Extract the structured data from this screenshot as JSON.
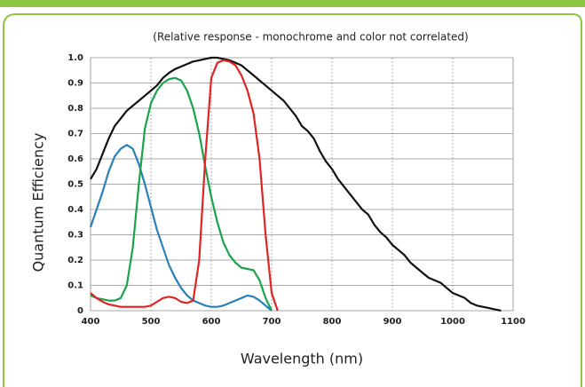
{
  "chart_data": {
    "type": "line",
    "title": "(Relative response - monochrome and color not correlated)",
    "x_label": "Wavelength (nm)",
    "y_label": "Quantum Efficiency",
    "x": [
      400,
      410,
      420,
      430,
      440,
      450,
      460,
      470,
      480,
      490,
      500,
      510,
      520,
      530,
      540,
      550,
      560,
      570,
      580,
      590,
      600,
      610,
      620,
      630,
      640,
      650,
      660,
      670,
      680,
      690,
      700,
      710,
      720,
      730,
      740,
      750,
      760,
      770,
      780,
      790,
      800,
      810,
      820,
      830,
      840,
      850,
      860,
      870,
      880,
      890,
      900,
      910,
      920,
      930,
      940,
      950,
      960,
      970,
      980,
      990,
      1000,
      1010,
      1020,
      1030,
      1040,
      1050,
      1060,
      1070,
      1080
    ],
    "series": [
      {
        "color": "#111111",
        "values": [
          0.52,
          0.56,
          0.62,
          0.68,
          0.73,
          0.76,
          0.79,
          0.81,
          0.83,
          0.85,
          0.87,
          0.89,
          0.92,
          0.94,
          0.955,
          0.965,
          0.975,
          0.985,
          0.99,
          0.995,
          1.0,
          1.0,
          0.995,
          0.99,
          0.98,
          0.97,
          0.95,
          0.93,
          0.91,
          0.89,
          0.87,
          0.85,
          0.83,
          0.8,
          0.77,
          0.73,
          0.71,
          0.68,
          0.63,
          0.59,
          0.56,
          0.52,
          0.49,
          0.46,
          0.43,
          0.4,
          0.38,
          0.34,
          0.31,
          0.29,
          0.26,
          0.24,
          0.22,
          0.19,
          0.17,
          0.15,
          0.13,
          0.12,
          0.11,
          0.09,
          0.07,
          0.06,
          0.05,
          0.03,
          0.02,
          0.015,
          0.01,
          0.005,
          0.0
        ]
      },
      {
        "color": "#2a7fb8",
        "values": [
          0.33,
          0.4,
          0.47,
          0.55,
          0.61,
          0.64,
          0.655,
          0.64,
          0.58,
          0.5,
          0.41,
          0.32,
          0.25,
          0.18,
          0.13,
          0.09,
          0.06,
          0.04,
          0.03,
          0.02,
          0.015,
          0.015,
          0.02,
          0.03,
          0.04,
          0.05,
          0.06,
          0.055,
          0.04,
          0.02,
          0.0,
          null,
          null,
          null,
          null,
          null,
          null,
          null,
          null,
          null,
          null,
          null,
          null,
          null,
          null,
          null,
          null,
          null,
          null,
          null,
          null,
          null,
          null,
          null,
          null,
          null,
          null,
          null,
          null,
          null,
          null,
          null,
          null,
          null,
          null,
          null,
          null,
          null,
          null
        ]
      },
      {
        "color": "#1aa34a",
        "values": [
          0.06,
          0.05,
          0.045,
          0.04,
          0.04,
          0.05,
          0.1,
          0.25,
          0.5,
          0.72,
          0.82,
          0.87,
          0.9,
          0.915,
          0.92,
          0.91,
          0.87,
          0.8,
          0.7,
          0.57,
          0.45,
          0.35,
          0.27,
          0.22,
          0.19,
          0.17,
          0.165,
          0.16,
          0.12,
          0.05,
          0.0,
          null,
          null,
          null,
          null,
          null,
          null,
          null,
          null,
          null,
          null,
          null,
          null,
          null,
          null,
          null,
          null,
          null,
          null,
          null,
          null,
          null,
          null,
          null,
          null,
          null,
          null,
          null,
          null,
          null,
          null,
          null,
          null,
          null,
          null,
          null,
          null,
          null,
          null
        ]
      },
      {
        "color": "#e02424",
        "values": [
          0.07,
          0.05,
          0.035,
          0.025,
          0.02,
          0.015,
          0.015,
          0.015,
          0.015,
          0.015,
          0.02,
          0.035,
          0.05,
          0.055,
          0.05,
          0.035,
          0.03,
          0.04,
          0.2,
          0.6,
          0.92,
          0.98,
          0.99,
          0.985,
          0.97,
          0.93,
          0.87,
          0.78,
          0.6,
          0.3,
          0.07,
          0.0,
          null,
          null,
          null,
          null,
          null,
          null,
          null,
          null,
          null,
          null,
          null,
          null,
          null,
          null,
          null,
          null,
          null,
          null,
          null,
          null,
          null,
          null,
          null,
          null,
          null,
          null,
          null,
          null,
          null,
          null,
          null,
          null,
          null,
          null,
          null,
          null,
          null
        ]
      }
    ],
    "xlim": [
      400,
      1100
    ],
    "xticks": [
      400,
      500,
      600,
      700,
      800,
      900,
      1000,
      1100
    ],
    "ylim": [
      0,
      1
    ],
    "yticks": [
      0,
      0.1,
      0.2,
      0.3,
      0.4,
      0.5,
      0.6,
      0.7,
      0.8,
      0.9,
      {
        "value": 1,
        "label": "1.0"
      }
    ],
    "grid": true
  }
}
